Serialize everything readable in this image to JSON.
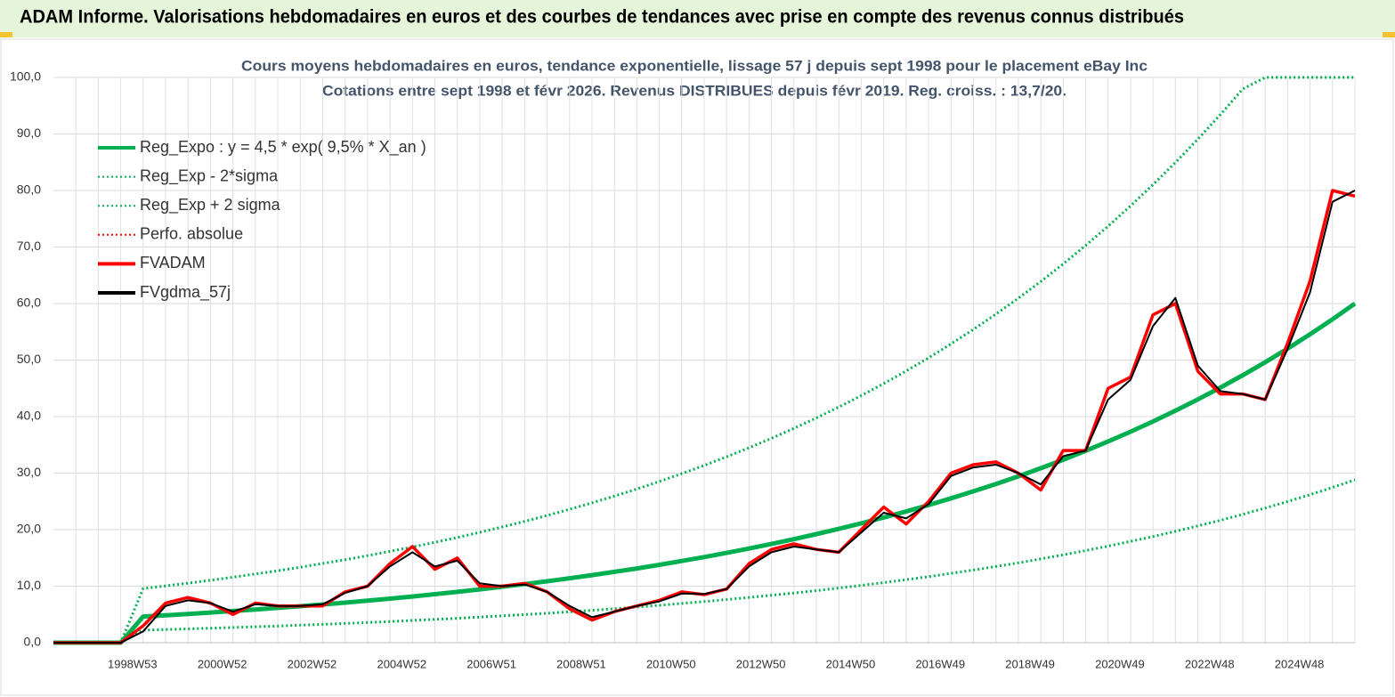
{
  "header": {
    "title": "ADAM Informe. Valorisations hebdomadaires en euros et des courbes de tendances avec prise en compte des revenus connus distribués"
  },
  "chart_data": {
    "type": "line",
    "title": [
      "Cours moyens  hebdomadaires en euros, tendance exponentielle, lissage 57 j depuis sept 1998 pour le placement eBay Inc",
      "Cotations entre sept 1998 et févr 2026.  Revenus DISTRIBUES depuis févr 2019.  Reg. croiss. : 13,7/20."
    ],
    "categories": [
      null,
      null,
      null,
      null,
      "1998W53",
      null,
      null,
      null,
      "2000W52",
      null,
      null,
      null,
      "2002W52",
      null,
      null,
      null,
      "2004W52",
      null,
      null,
      null,
      "2006W51",
      null,
      null,
      null,
      "2008W51",
      null,
      null,
      null,
      "2010W50",
      null,
      null,
      null,
      "2012W50",
      null,
      null,
      null,
      "2014W50",
      null,
      null,
      null,
      "2016W49",
      null,
      null,
      null,
      "2018W49",
      null,
      null,
      null,
      "2020W49",
      null,
      null,
      null,
      "2022W48",
      null,
      null,
      null,
      "2024W48",
      null,
      null
    ],
    "ylim": [
      0,
      100
    ],
    "yticks": [
      {
        "value": 0,
        "label": "0,0"
      },
      {
        "value": 10,
        "label": "10,0"
      },
      {
        "value": 20,
        "label": "20,0"
      },
      {
        "value": 30,
        "label": "30,0"
      },
      {
        "value": 40,
        "label": "40,0"
      },
      {
        "value": 50,
        "label": "50,0"
      },
      {
        "value": 60,
        "label": "60,0"
      },
      {
        "value": 70,
        "label": "70,0"
      },
      {
        "value": 80,
        "label": "80,0"
      },
      {
        "value": 90,
        "label": "90,0"
      },
      {
        "value": 100,
        "label": "100,0"
      }
    ],
    "grid": true,
    "legend": "upper left",
    "series": [
      {
        "name": "Reg_Expo : y = 4,5 * exp( 9,5% *  X_an )",
        "color": "#00b050",
        "style": "solid",
        "values": [
          0,
          0,
          0,
          0,
          4.63,
          4.85,
          5.09,
          5.34,
          5.6,
          5.87,
          6.15,
          6.45,
          6.77,
          7.09,
          7.44,
          7.8,
          8.18,
          8.58,
          8.99,
          9.43,
          9.89,
          10.37,
          10.87,
          11.4,
          11.95,
          12.53,
          13.14,
          13.78,
          14.45,
          15.15,
          15.89,
          16.66,
          17.47,
          18.32,
          19.21,
          20.14,
          21.12,
          22.15,
          23.22,
          24.35,
          25.54,
          26.78,
          28.08,
          29.44,
          30.87,
          32.37,
          33.95,
          35.6,
          37.33,
          39.14,
          41.04,
          43.04,
          45.13,
          47.32,
          49.62,
          52.03,
          54.56,
          57.22,
          60.0
        ]
      },
      {
        "name": "Reg_Exp - 2*sigma",
        "color": "#00b050",
        "style": "dotted",
        "values": [
          0,
          0,
          0,
          0,
          2.22,
          2.33,
          2.44,
          2.56,
          2.69,
          2.82,
          2.95,
          3.1,
          3.25,
          3.4,
          3.57,
          3.74,
          3.93,
          4.12,
          4.32,
          4.53,
          4.75,
          4.98,
          5.22,
          5.47,
          5.74,
          6.01,
          6.31,
          6.61,
          6.94,
          7.27,
          7.63,
          8.0,
          8.39,
          8.79,
          9.22,
          9.67,
          10.14,
          10.63,
          11.15,
          11.69,
          12.26,
          12.85,
          13.48,
          14.13,
          14.82,
          15.54,
          16.3,
          17.09,
          17.92,
          18.79,
          19.7,
          20.66,
          21.66,
          22.71,
          23.82,
          24.97,
          26.19,
          27.47,
          28.8
        ]
      },
      {
        "name": "Reg_Exp + 2 sigma",
        "color": "#00b050",
        "style": "dotted",
        "values": [
          0,
          0,
          0,
          0,
          9.58,
          10.04,
          10.54,
          11.05,
          11.59,
          12.15,
          12.73,
          13.35,
          14.01,
          14.68,
          15.4,
          16.15,
          16.93,
          17.76,
          18.61,
          19.52,
          20.47,
          21.47,
          22.5,
          23.6,
          24.74,
          25.94,
          27.2,
          28.52,
          29.91,
          31.36,
          32.89,
          34.49,
          36.16,
          37.92,
          39.76,
          41.69,
          43.72,
          45.85,
          48.07,
          50.4,
          52.87,
          55.43,
          58.13,
          60.94,
          63.9,
          67.01,
          70.28,
          73.69,
          77.27,
          81.02,
          84.95,
          89.09,
          93.42,
          97.95,
          100,
          100,
          100,
          100,
          100
        ]
      },
      {
        "name": "Perfo. absolue",
        "color": "#ff0000",
        "style": "dotted",
        "values": [
          0,
          0,
          0,
          0,
          3,
          7,
          8,
          7,
          5,
          7,
          6.5,
          6.5,
          6.5,
          9,
          10,
          14,
          17,
          13,
          15,
          10,
          10,
          10.5,
          9,
          6,
          4,
          5.5,
          6.5,
          7.5,
          9,
          8.5,
          9.5,
          14,
          16.5,
          17.5,
          16.5,
          16,
          20,
          24,
          21,
          25,
          30,
          31.5,
          32,
          30,
          27,
          34,
          34,
          45,
          47,
          58,
          60,
          48,
          44,
          44,
          43,
          53,
          64,
          80,
          79
        ]
      },
      {
        "name": "FVADAM",
        "color": "#ff0000",
        "style": "solid",
        "values": [
          0,
          0,
          0,
          0,
          3,
          7,
          8,
          7,
          5,
          7,
          6.5,
          6.5,
          6.5,
          9,
          10,
          14,
          17,
          13,
          15,
          10,
          10,
          10.5,
          9,
          6,
          4,
          5.5,
          6.5,
          7.5,
          9,
          8.5,
          9.5,
          14,
          16.5,
          17.5,
          16.5,
          16,
          20,
          24,
          21,
          25,
          30,
          31.5,
          32,
          30,
          27,
          34,
          34,
          45,
          47,
          58,
          60,
          48,
          44,
          44,
          43,
          53,
          64,
          80,
          79
        ]
      },
      {
        "name": "FVgdma_57j",
        "color": "#000000",
        "style": "solid",
        "values": [
          0,
          0,
          0,
          0,
          2,
          6.5,
          7.5,
          7,
          5.5,
          6.8,
          6.5,
          6.5,
          6.8,
          8.8,
          10,
          13.5,
          16,
          13.5,
          14.5,
          10.5,
          10,
          10.3,
          9,
          6.5,
          4.5,
          5.5,
          6.5,
          7.3,
          8.7,
          8.6,
          9.5,
          13.5,
          16,
          17,
          16.5,
          16,
          19.5,
          23,
          22,
          24.5,
          29.5,
          31,
          31.5,
          30,
          28,
          33,
          34,
          43,
          46.5,
          56,
          61,
          49,
          44.5,
          44,
          43,
          52,
          62,
          78,
          80
        ]
      }
    ]
  }
}
